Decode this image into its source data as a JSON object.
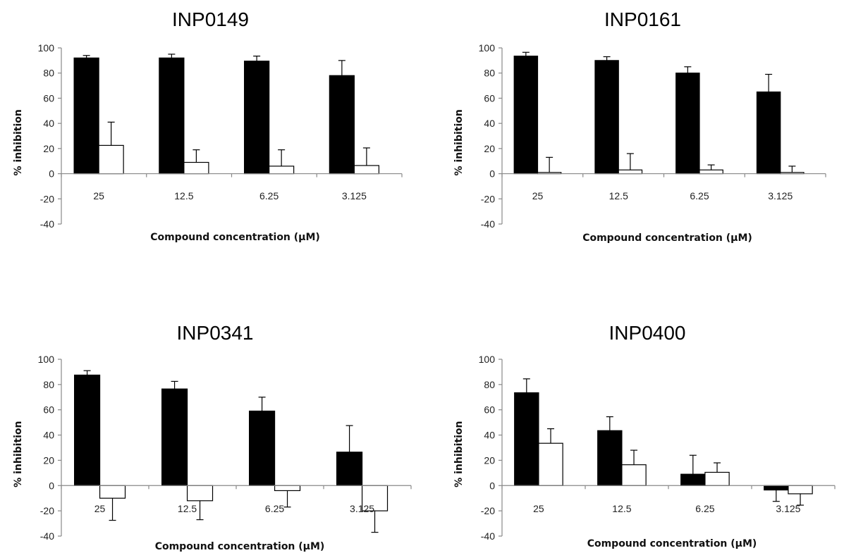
{
  "chart_data": [
    {
      "type": "bar",
      "title": "INP0149",
      "xlabel": "Compound concentration (µM)",
      "ylabel": "% inhibition",
      "categories": [
        "25",
        "12.5",
        "6.25",
        "3.125"
      ],
      "ylim": [
        -40,
        100
      ],
      "yticks": [
        -40,
        -20,
        0,
        20,
        40,
        60,
        80,
        100
      ],
      "grid": false,
      "legend": "none",
      "series": [
        {
          "color": "#000000",
          "values": [
            92,
            92,
            89.5,
            78
          ],
          "errors": [
            2,
            3,
            4,
            12
          ]
        },
        {
          "color": "#ffffff",
          "values": [
            22.5,
            9,
            6,
            6.5
          ],
          "errors": [
            18.5,
            10,
            13,
            14
          ]
        }
      ]
    },
    {
      "type": "bar",
      "title": "INP0161",
      "xlabel": "Compound concentration (µM)",
      "ylabel": "% inhibition",
      "categories": [
        "25",
        "12.5",
        "6.25",
        "3.125"
      ],
      "ylim": [
        -40,
        100
      ],
      "yticks": [
        -40,
        -20,
        0,
        20,
        40,
        60,
        80,
        100
      ],
      "grid": false,
      "legend": "none",
      "series": [
        {
          "color": "#000000",
          "values": [
            93.5,
            90,
            80,
            65
          ],
          "errors": [
            3,
            3,
            5,
            14
          ]
        },
        {
          "color": "#ffffff",
          "values": [
            1,
            3,
            3,
            1
          ],
          "errors": [
            12,
            13,
            4,
            5
          ]
        }
      ]
    },
    {
      "type": "bar",
      "title": "INP0341",
      "xlabel": "Compound concentration (µM)",
      "ylabel": "% inhibition",
      "categories": [
        "25",
        "12.5",
        "6.25",
        "3.125"
      ],
      "ylim": [
        -40,
        100
      ],
      "yticks": [
        -40,
        -20,
        0,
        20,
        40,
        60,
        80,
        100
      ],
      "grid": false,
      "legend": "none",
      "series": [
        {
          "color": "#000000",
          "values": [
            87.5,
            76.5,
            59,
            26.5
          ],
          "errors": [
            3.5,
            6,
            11,
            21
          ]
        },
        {
          "color": "#ffffff",
          "values": [
            -10,
            -12,
            -4,
            -20
          ],
          "errors": [
            17.5,
            15,
            13,
            17
          ]
        }
      ]
    },
    {
      "type": "bar",
      "title": "INP0400",
      "xlabel": "Compound concentration (µM)",
      "ylabel": "% inhibition",
      "categories": [
        "25",
        "12.5",
        "6.25",
        "3.125"
      ],
      "ylim": [
        -40,
        100
      ],
      "yticks": [
        -40,
        -20,
        0,
        20,
        40,
        60,
        80,
        100
      ],
      "grid": false,
      "legend": "none",
      "series": [
        {
          "color": "#000000",
          "values": [
            73.5,
            43.5,
            9,
            -3.5
          ],
          "errors": [
            11,
            11,
            15,
            9
          ]
        },
        {
          "color": "#ffffff",
          "values": [
            33.5,
            16.5,
            10.5,
            -6.5
          ],
          "errors": [
            11.5,
            11.5,
            7.5,
            9
          ]
        }
      ]
    }
  ]
}
